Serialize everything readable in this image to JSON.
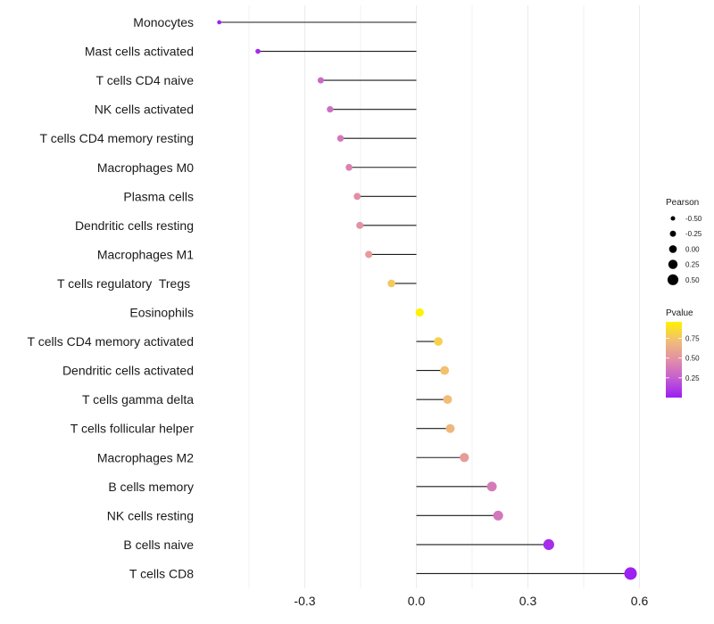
{
  "chart_data": {
    "type": "lollipop",
    "title": "",
    "xlabel": "",
    "ylabel": "",
    "xlim": [
      -0.56,
      0.62
    ],
    "x_ticks": [
      -0.3,
      0.0,
      0.3,
      0.6
    ],
    "x_tick_labels": [
      "-0.3",
      "0.0",
      "0.3",
      "0.6"
    ],
    "minor_gridlines": [
      -0.45,
      -0.15,
      0.15,
      0.45
    ],
    "grid": true,
    "categories": [
      "Monocytes",
      "Mast cells activated",
      "T cells CD4 naive",
      "NK cells activated",
      "T cells CD4 memory resting",
      "Macrophages M0",
      "Plasma cells",
      "Dendritic cells resting",
      "Macrophages M1",
      "T cells regulatory  Tregs ",
      "Eosinophils",
      "T cells CD4 memory activated",
      "Dendritic cells activated",
      "T cells gamma delta",
      "T cells follicular helper",
      "Macrophages M2",
      "B cells memory",
      "NK cells resting",
      "B cells naive",
      "T cells CD8"
    ],
    "series": [
      {
        "name": "Pearson",
        "values": [
          -0.53,
          -0.426,
          -0.257,
          -0.232,
          -0.204,
          -0.181,
          -0.159,
          -0.152,
          -0.128,
          -0.067,
          0.009,
          0.059,
          0.076,
          0.084,
          0.091,
          0.129,
          0.203,
          0.22,
          0.356,
          0.576
        ]
      },
      {
        "name": "Pvalue",
        "values": [
          0.02,
          0.05,
          0.3,
          0.33,
          0.37,
          0.42,
          0.48,
          0.49,
          0.55,
          0.77,
          0.96,
          0.81,
          0.74,
          0.72,
          0.69,
          0.55,
          0.38,
          0.36,
          0.06,
          0.01
        ]
      }
    ],
    "legend": {
      "placement": "right",
      "size_legend": {
        "title": "Pearson",
        "values": [
          -0.5,
          -0.25,
          0.0,
          0.25,
          0.5
        ],
        "labels": [
          "-0.50",
          "-0.25",
          "0.00",
          "0.25",
          "0.50"
        ]
      },
      "color_legend": {
        "title": "Pvalue",
        "range": [
          0.0,
          0.96
        ],
        "ticks": [
          0.25,
          0.5,
          0.75
        ],
        "labels": [
          "0.25",
          "0.50",
          "0.75"
        ],
        "colors": {
          "low": "#9b1ef2",
          "mid": "#e8a0a0",
          "high": "#fff200"
        }
      }
    }
  }
}
